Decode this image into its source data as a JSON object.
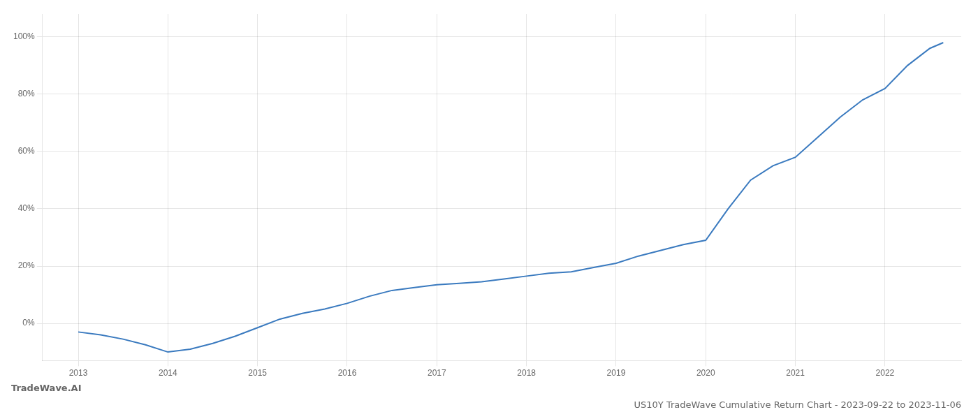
{
  "chart_data": {
    "type": "line",
    "title": "US10Y TradeWave Cumulative Return Chart - 2023-09-22 to 2023-11-06",
    "annotations": [
      "TradeWave.AI"
    ],
    "x": [
      2013.0,
      2013.25,
      2013.5,
      2013.75,
      2014.0,
      2014.25,
      2014.5,
      2014.75,
      2015.0,
      2015.25,
      2015.5,
      2015.75,
      2016.0,
      2016.25,
      2016.5,
      2016.75,
      2017.0,
      2017.25,
      2017.5,
      2017.75,
      2018.0,
      2018.25,
      2018.5,
      2018.75,
      2019.0,
      2019.25,
      2019.5,
      2019.75,
      2020.0,
      2020.25,
      2020.5,
      2020.75,
      2021.0,
      2021.25,
      2021.5,
      2021.75,
      2022.0,
      2022.25,
      2022.5,
      2022.65
    ],
    "values": [
      -3.0,
      -4.0,
      -5.5,
      -7.5,
      -10.0,
      -9.0,
      -7.0,
      -4.5,
      -1.5,
      1.5,
      3.5,
      5.0,
      7.0,
      9.5,
      11.5,
      12.5,
      13.5,
      14.0,
      14.5,
      15.5,
      16.5,
      17.5,
      18.0,
      19.5,
      21.0,
      23.5,
      25.5,
      27.5,
      29.0,
      40.0,
      50.0,
      55.0,
      58.0,
      65.0,
      72.0,
      78.0,
      82.0,
      90.0,
      96.0,
      98.0
    ],
    "color": "#3a7abf",
    "xlim": [
      2012.6,
      2022.85
    ],
    "xticks": [
      2013,
      2014,
      2015,
      2016,
      2017,
      2018,
      2019,
      2020,
      2021,
      2022
    ],
    "ylim": [
      -13,
      108
    ],
    "yticks": [
      {
        "value": 0,
        "label": "0%"
      },
      {
        "value": 20,
        "label": "20%"
      },
      {
        "value": 40,
        "label": "40%"
      },
      {
        "value": 60,
        "label": "60%"
      },
      {
        "value": 80,
        "label": "80%"
      },
      {
        "value": 100,
        "label": "100%"
      }
    ],
    "grid": true
  }
}
